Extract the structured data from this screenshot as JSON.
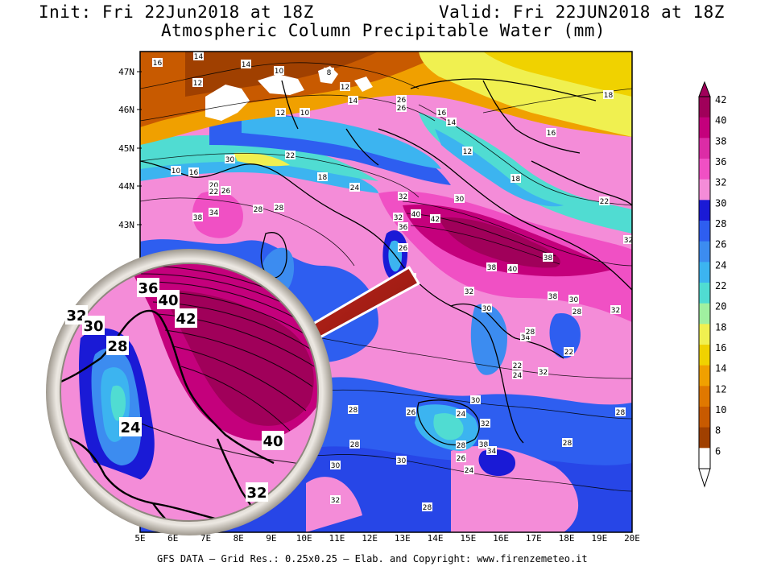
{
  "header": {
    "init": "Init: Fri 22Jun2018 at 18Z",
    "valid": "Valid: Fri 22JUN2018 at 18Z",
    "title": "Atmospheric Column Precipitable Water (mm)"
  },
  "footer": "GFS DATA — Grid Res.: 0.25x0.25 — Elab. and Copyright: www.firenzemeteo.it",
  "lat_labels": [
    "47N",
    "46N",
    "45N",
    "44N",
    "43N"
  ],
  "lon_labels": [
    "5E",
    "6E",
    "7E",
    "8E",
    "9E",
    "10E",
    "11E",
    "12E",
    "13E",
    "14E",
    "15E",
    "16E",
    "17E",
    "18E",
    "19E",
    "20E"
  ],
  "colorbar": {
    "labels": [
      "42",
      "40",
      "38",
      "36",
      "32",
      "30",
      "28",
      "26",
      "24",
      "22",
      "20",
      "18",
      "16",
      "14",
      "12",
      "10",
      "8",
      "6"
    ],
    "colors": [
      "#a0005a",
      "#c4007c",
      "#dc2ca6",
      "#f050c4",
      "#f48cd8",
      "#1a1ad6",
      "#2e5ef0",
      "#3c8cf0",
      "#3cb4f0",
      "#50dcd2",
      "#a0f0a0",
      "#f0f050",
      "#f0d200",
      "#f0a000",
      "#e07800",
      "#c85a00",
      "#a04000",
      "#ffffff"
    ]
  },
  "contour_labels": [
    {
      "t": "16"
    },
    {
      "t": "14"
    },
    {
      "t": "14"
    },
    {
      "t": "12"
    },
    {
      "t": "10"
    },
    {
      "t": "8"
    },
    {
      "t": "12"
    },
    {
      "t": "14"
    },
    {
      "t": "12"
    },
    {
      "t": "10"
    },
    {
      "t": "26"
    },
    {
      "t": "26"
    },
    {
      "t": "16"
    },
    {
      "t": "14"
    },
    {
      "t": "16"
    },
    {
      "t": "18"
    },
    {
      "t": "12"
    },
    {
      "t": "18"
    },
    {
      "t": "10"
    },
    {
      "t": "16"
    },
    {
      "t": "20"
    },
    {
      "t": "22"
    },
    {
      "t": "28"
    },
    {
      "t": "34"
    },
    {
      "t": "38"
    },
    {
      "t": "30"
    },
    {
      "t": "28"
    },
    {
      "t": "26"
    },
    {
      "t": "22"
    },
    {
      "t": "18"
    },
    {
      "t": "24"
    },
    {
      "t": "32"
    },
    {
      "t": "32"
    },
    {
      "t": "36"
    },
    {
      "t": "40"
    },
    {
      "t": "42"
    },
    {
      "t": "30"
    },
    {
      "t": "26"
    },
    {
      "t": "38"
    },
    {
      "t": "40"
    },
    {
      "t": "38"
    },
    {
      "t": "38"
    },
    {
      "t": "30"
    },
    {
      "t": "28"
    },
    {
      "t": "32"
    },
    {
      "t": "28"
    },
    {
      "t": "32"
    },
    {
      "t": "30"
    },
    {
      "t": "22"
    },
    {
      "t": "24"
    },
    {
      "t": "32"
    },
    {
      "t": "34"
    },
    {
      "t": "22"
    },
    {
      "t": "28"
    },
    {
      "t": "30"
    },
    {
      "t": "28"
    },
    {
      "t": "26"
    },
    {
      "t": "24"
    },
    {
      "t": "32"
    },
    {
      "t": "38"
    },
    {
      "t": "34"
    },
    {
      "t": "28"
    },
    {
      "t": "26"
    },
    {
      "t": "24"
    },
    {
      "t": "28"
    },
    {
      "t": "28"
    },
    {
      "t": "28"
    },
    {
      "t": "30"
    },
    {
      "t": "30"
    },
    {
      "t": "28"
    },
    {
      "t": "32"
    },
    {
      "t": "28"
    },
    {
      "t": "22"
    },
    {
      "t": "32"
    }
  ],
  "inset_labels": [
    {
      "t": "36"
    },
    {
      "t": "40"
    },
    {
      "t": "42"
    },
    {
      "t": "32"
    },
    {
      "t": "30"
    },
    {
      "t": "28"
    },
    {
      "t": "24"
    },
    {
      "t": "40"
    },
    {
      "t": "32"
    }
  ]
}
